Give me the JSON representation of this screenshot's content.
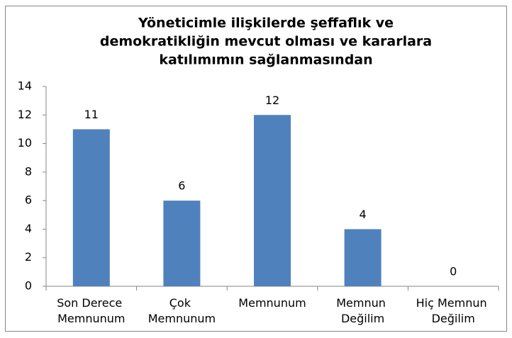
{
  "chart_data": {
    "type": "bar",
    "title": [
      "Yöneticimle ilişkilerde şeffaflık ve",
      "demokratikliğin mevcut olması ve kararlara",
      "katılımımın sağlanmasından"
    ],
    "categories": [
      "Son Derece Memnunum",
      "Çok Memnunum",
      "Memnunum",
      "Memnun Değilim",
      "Hiç Memnun Değilim"
    ],
    "values": [
      11,
      6,
      12,
      4,
      0
    ],
    "color": "#4f81bd",
    "ylim": [
      0,
      14
    ],
    "yticks": [
      0,
      2,
      4,
      6,
      8,
      10,
      12,
      14
    ],
    "grid": false
  }
}
